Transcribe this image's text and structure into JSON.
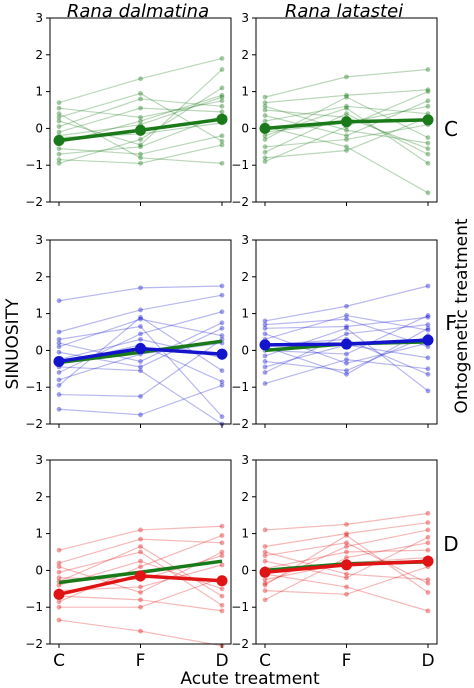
{
  "figure": {
    "columns": [
      "Rana dalmatina",
      "Rana latastei"
    ],
    "rows": [
      "C",
      "F",
      "D"
    ],
    "xlabel": "Acute treatment",
    "ylabel": "SINUOSITY",
    "row_axis_label": "Ontogenetic treatment",
    "colors": {
      "C": "#1a7a1a",
      "F": "#1414cc",
      "D": "#e01414",
      "frame": "#000000"
    }
  },
  "chart_data": [
    {
      "type": "line",
      "column": "Rana dalmatina",
      "row": "C",
      "categories": [
        "C",
        "F",
        "D"
      ],
      "ylim": [
        -2,
        3
      ],
      "yticks": [
        -2,
        -1,
        0,
        1,
        2,
        3
      ],
      "series": [
        {
          "name": "",
          "values": [
            -0.33,
            -0.05,
            0.25
          ],
          "role": "mean",
          "color": "#1a7a1a"
        }
      ],
      "individuals": [
        [
          0.7,
          1.35,
          1.9
        ],
        [
          0.55,
          0.3,
          0.75
        ],
        [
          0.3,
          0.95,
          -0.35
        ],
        [
          0.2,
          -0.45,
          1.6
        ],
        [
          0.05,
          0.8,
          0.6
        ],
        [
          -0.1,
          0.55,
          0.45
        ],
        [
          -0.25,
          -0.15,
          0.15
        ],
        [
          -0.4,
          0.2,
          0.9
        ],
        [
          -0.55,
          -0.7,
          -0.2
        ],
        [
          -0.7,
          -0.5,
          0.35
        ],
        [
          -0.85,
          -0.95,
          -0.45
        ],
        [
          -0.95,
          -0.3,
          1.1
        ],
        [
          0.4,
          -0.8,
          -0.95
        ],
        [
          -0.2,
          0.1,
          0.85
        ]
      ]
    },
    {
      "type": "line",
      "column": "Rana latastei",
      "row": "C",
      "categories": [
        "C",
        "F",
        "D"
      ],
      "ylim": [
        -2,
        3
      ],
      "yticks": [
        -2,
        -1,
        0,
        1,
        2,
        3
      ],
      "series": [
        {
          "name": "",
          "values": [
            0.0,
            0.18,
            0.23
          ],
          "role": "mean",
          "color": "#1a7a1a"
        }
      ],
      "individuals": [
        [
          0.85,
          1.4,
          1.6
        ],
        [
          0.7,
          0.9,
          1.05
        ],
        [
          0.5,
          0.3,
          -0.55
        ],
        [
          0.35,
          -0.2,
          0.75
        ],
        [
          0.2,
          0.6,
          0.4
        ],
        [
          0.05,
          -0.5,
          -1.75
        ],
        [
          -0.1,
          0.15,
          0.6
        ],
        [
          -0.3,
          0.85,
          -0.25
        ],
        [
          -0.5,
          -0.3,
          0.1
        ],
        [
          -0.65,
          0.4,
          -0.7
        ],
        [
          -0.8,
          -0.6,
          0.3
        ],
        [
          -0.9,
          0.05,
          1.0
        ],
        [
          0.6,
          -0.05,
          -0.4
        ],
        [
          -0.2,
          0.55,
          -0.95
        ]
      ]
    },
    {
      "type": "line",
      "column": "Rana dalmatina",
      "row": "F",
      "categories": [
        "C",
        "F",
        "D"
      ],
      "ylim": [
        -2,
        3
      ],
      "yticks": [
        -2,
        -1,
        0,
        1,
        2,
        3
      ],
      "series": [
        {
          "name": "",
          "values": [
            -0.3,
            0.05,
            -0.1
          ],
          "role": "mean",
          "color": "#1414cc"
        },
        {
          "name": "",
          "values": [
            -0.33,
            -0.05,
            0.25
          ],
          "role": "reference",
          "color": "#1a7a1a"
        }
      ],
      "individuals": [
        [
          1.35,
          1.7,
          1.75
        ],
        [
          0.5,
          1.1,
          1.5
        ],
        [
          0.3,
          0.65,
          -1.8
        ],
        [
          0.1,
          0.85,
          0.4
        ],
        [
          -0.05,
          -0.45,
          0.6
        ],
        [
          -0.25,
          0.3,
          -0.2
        ],
        [
          -0.45,
          -0.55,
          -2.0
        ],
        [
          -0.6,
          0.45,
          1.05
        ],
        [
          -0.8,
          -0.1,
          0.2
        ],
        [
          -0.95,
          0.9,
          -0.55
        ],
        [
          -1.2,
          -1.25,
          0.3
        ],
        [
          -1.6,
          -1.75,
          -0.95
        ],
        [
          0.2,
          -0.3,
          0.75
        ],
        [
          -0.35,
          0.15,
          -0.85
        ]
      ]
    },
    {
      "type": "line",
      "column": "Rana latastei",
      "row": "F",
      "categories": [
        "C",
        "F",
        "D"
      ],
      "ylim": [
        -2,
        3
      ],
      "yticks": [
        -2,
        -1,
        0,
        1,
        2,
        3
      ],
      "series": [
        {
          "name": "",
          "values": [
            0.15,
            0.17,
            0.28
          ],
          "role": "mean",
          "color": "#1414cc"
        },
        {
          "name": "",
          "values": [
            0.0,
            0.18,
            0.23
          ],
          "role": "reference",
          "color": "#1a7a1a"
        }
      ],
      "individuals": [
        [
          0.8,
          1.2,
          1.75
        ],
        [
          0.6,
          0.65,
          0.9
        ],
        [
          0.45,
          -0.35,
          0.2
        ],
        [
          0.3,
          0.95,
          0.55
        ],
        [
          0.15,
          0.3,
          -0.65
        ],
        [
          0.0,
          -0.1,
          0.95
        ],
        [
          -0.15,
          0.6,
          -1.1
        ],
        [
          -0.3,
          -0.55,
          0.4
        ],
        [
          -0.45,
          0.15,
          -0.2
        ],
        [
          -0.6,
          0.45,
          0.7
        ],
        [
          -0.9,
          -0.25,
          -0.5
        ],
        [
          0.7,
          0.85,
          0.1
        ],
        [
          0.1,
          -0.65,
          0.6
        ]
      ]
    },
    {
      "type": "line",
      "column": "Rana dalmatina",
      "row": "D",
      "categories": [
        "C",
        "F",
        "D"
      ],
      "ylim": [
        -2,
        3
      ],
      "yticks": [
        -2,
        -1,
        0,
        1,
        2,
        3
      ],
      "series": [
        {
          "name": "",
          "values": [
            -0.65,
            -0.15,
            -0.28
          ],
          "role": "mean",
          "color": "#e01414"
        },
        {
          "name": "",
          "values": [
            -0.33,
            -0.05,
            0.25
          ],
          "role": "reference",
          "color": "#1a7a1a"
        }
      ],
      "individuals": [
        [
          0.55,
          1.1,
          1.2
        ],
        [
          0.2,
          0.85,
          0.75
        ],
        [
          -0.05,
          0.5,
          -0.95
        ],
        [
          -0.2,
          -0.25,
          0.4
        ],
        [
          -0.4,
          0.25,
          -0.5
        ],
        [
          -0.55,
          -0.45,
          0.15
        ],
        [
          -0.7,
          -0.8,
          -1.1
        ],
        [
          -0.85,
          0.1,
          0.95
        ],
        [
          -1.0,
          -1.0,
          -0.2
        ],
        [
          -1.35,
          -1.65,
          -2.05
        ],
        [
          -0.3,
          0.65,
          -0.7
        ],
        [
          0.1,
          -0.6,
          0.5
        ]
      ]
    },
    {
      "type": "line",
      "column": "Rana latastei",
      "row": "D",
      "categories": [
        "C",
        "F",
        "D"
      ],
      "ylim": [
        -2,
        3
      ],
      "yticks": [
        -2,
        -1,
        0,
        1,
        2,
        3
      ],
      "series": [
        {
          "name": "",
          "values": [
            -0.05,
            0.15,
            0.25
          ],
          "role": "mean",
          "color": "#e01414"
        },
        {
          "name": "",
          "values": [
            0.0,
            0.18,
            0.23
          ],
          "role": "reference",
          "color": "#1a7a1a"
        }
      ],
      "individuals": [
        [
          1.1,
          1.25,
          1.55
        ],
        [
          0.65,
          1.0,
          1.3
        ],
        [
          0.4,
          0.75,
          -0.35
        ],
        [
          0.25,
          -0.2,
          0.9
        ],
        [
          0.05,
          0.5,
          0.55
        ],
        [
          -0.1,
          -0.45,
          -1.1
        ],
        [
          -0.25,
          0.2,
          0.35
        ],
        [
          -0.4,
          0.95,
          -0.6
        ],
        [
          -0.55,
          -0.65,
          0.1
        ],
        [
          -0.8,
          0.35,
          0.75
        ],
        [
          0.5,
          -0.1,
          -0.25
        ],
        [
          -0.35,
          0.65,
          1.1
        ]
      ]
    }
  ]
}
